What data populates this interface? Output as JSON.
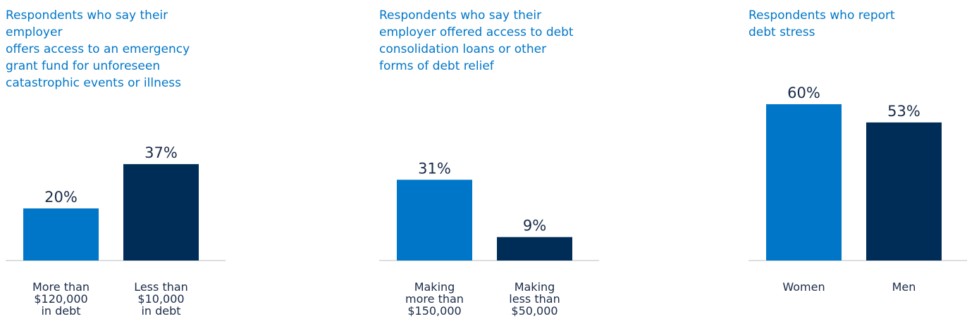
{
  "chart_data": [
    {
      "type": "bar",
      "title": "Respondents who say their employer offers access to an emergency grant fund for unforeseen catastrophic events or illness",
      "title_lines": [
        "Respondents who say their employer",
        "offers access to an emergency",
        "grant fund for unforeseen",
        "catastrophic events or illness"
      ],
      "categories": [
        "More than $120,000 in debt",
        "Less than $10,000 in debt"
      ],
      "category_lines": [
        [
          "More than",
          "$120,000",
          "in debt"
        ],
        [
          "Less than",
          "$10,000",
          "in debt"
        ]
      ],
      "values": [
        20,
        37
      ],
      "value_labels": [
        "20%",
        "37%"
      ],
      "colors": [
        "#0076c8",
        "#002d57"
      ],
      "ylim": [
        0,
        60
      ]
    },
    {
      "type": "bar",
      "title": "Respondents who say their employer offered access to debt consolidation loans or other forms of debt relief",
      "title_lines": [
        "Respondents who say their",
        "employer offered access to debt",
        "consolidation loans or other",
        "forms of debt relief"
      ],
      "categories": [
        "Making more than $150,000",
        "Making less than $50,000"
      ],
      "category_lines": [
        [
          "Making",
          "more than",
          "$150,000"
        ],
        [
          "Making",
          "less than",
          "$50,000"
        ]
      ],
      "values": [
        31,
        9
      ],
      "value_labels": [
        "31%",
        "9%"
      ],
      "colors": [
        "#0076c8",
        "#002d57"
      ],
      "ylim": [
        0,
        60
      ]
    },
    {
      "type": "bar",
      "title": "Respondents who report debt stress",
      "title_lines": [
        "Respondents who report",
        "debt stress"
      ],
      "categories": [
        "Women",
        "Men"
      ],
      "category_lines": [
        [
          "Women"
        ],
        [
          "Men"
        ]
      ],
      "values": [
        60,
        53
      ],
      "value_labels": [
        "60%",
        "53%"
      ],
      "colors": [
        "#0076c8",
        "#002d57"
      ],
      "ylim": [
        0,
        60
      ]
    }
  ]
}
